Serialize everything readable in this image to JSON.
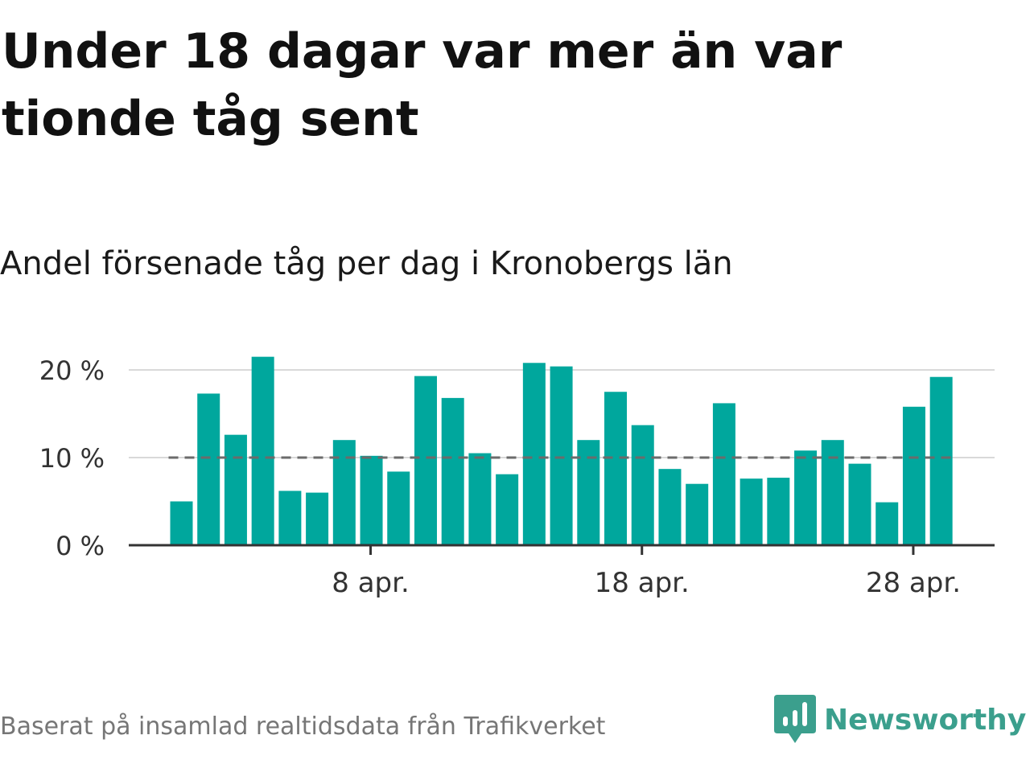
{
  "title": "Under 18 dagar var mer än var tionde tåg sent",
  "subtitle": "Andel försenade tåg per dag i Kronobergs län",
  "footer": {
    "source": "Baserat på insamlad realtidsdata från Trafikverket",
    "brand_name": "Newsworthy"
  },
  "colors": {
    "bar": "#00a79d",
    "brand": "#3b9f8d",
    "grid": "#d9d9d9",
    "reference_line": "#6b6b6b",
    "axis": "#333333"
  },
  "chart_data": {
    "type": "bar",
    "x_unit": "day of April",
    "x": [
      1,
      2,
      3,
      4,
      5,
      6,
      7,
      8,
      9,
      10,
      11,
      12,
      13,
      14,
      15,
      16,
      17,
      18,
      19,
      20,
      21,
      22,
      23,
      24,
      25,
      26,
      27,
      28,
      29
    ],
    "values": [
      5.0,
      17.3,
      12.6,
      21.5,
      6.2,
      6.0,
      12.0,
      10.2,
      8.4,
      19.3,
      16.8,
      10.5,
      8.1,
      20.8,
      20.4,
      12.0,
      17.5,
      13.7,
      8.7,
      7.0,
      16.2,
      7.6,
      7.7,
      10.8,
      12.0,
      9.3,
      4.9,
      15.8,
      19.2
    ],
    "x_ticks": [
      {
        "x": 8,
        "label": "8 apr."
      },
      {
        "x": 18,
        "label": "18 apr."
      },
      {
        "x": 28,
        "label": "28 apr."
      }
    ],
    "y_ticks": [
      {
        "y": 0,
        "label": "0 %"
      },
      {
        "y": 10,
        "label": "10 %"
      },
      {
        "y": 20,
        "label": "20 %"
      }
    ],
    "ylim": [
      0,
      20
    ],
    "reference_line": 10,
    "grid": true
  }
}
